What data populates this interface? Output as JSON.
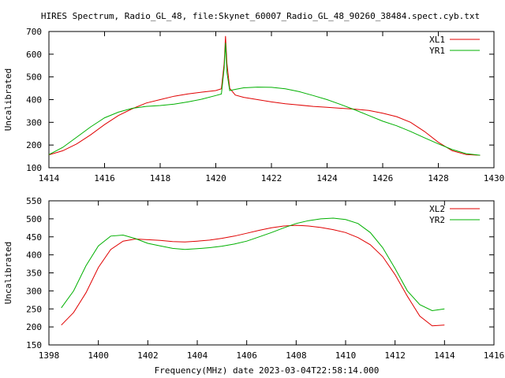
{
  "figure": {
    "title": "HIRES Spectrum, Radio_GL_48, file:Skynet_60007_Radio_GL_48_90260_38484.spect.cyb.txt",
    "xlabel": "Frequency(MHz) date 2023-03-04T22:58:14.000"
  },
  "chart_data": [
    {
      "type": "line",
      "title": "HIRES Spectrum, Radio_GL_48, file:Skynet_60007_Radio_GL_48_90260_38484.spect.cyb.txt",
      "xlabel": "",
      "ylabel": "Uncalibrated",
      "xlim": [
        1414,
        1430
      ],
      "ylim": [
        100,
        700
      ],
      "xticks": [
        1414,
        1416,
        1418,
        1420,
        1422,
        1424,
        1426,
        1428,
        1430
      ],
      "yticks": [
        100,
        200,
        300,
        400,
        500,
        600,
        700
      ],
      "legend_position": "top-right",
      "grid": false,
      "series": [
        {
          "name": "XL1",
          "color": "#e00000",
          "x": [
            1414.0,
            1414.5,
            1415.0,
            1415.5,
            1416.0,
            1416.5,
            1417.0,
            1417.5,
            1418.0,
            1418.5,
            1419.0,
            1419.5,
            1420.0,
            1420.2,
            1420.3,
            1420.35,
            1420.4,
            1420.5,
            1420.7,
            1421.0,
            1421.5,
            1422.0,
            1422.5,
            1423.0,
            1423.5,
            1424.0,
            1424.5,
            1425.0,
            1425.5,
            1426.0,
            1426.5,
            1427.0,
            1427.5,
            1428.0,
            1428.5,
            1429.0,
            1429.5
          ],
          "y": [
            157,
            175,
            205,
            245,
            290,
            330,
            360,
            385,
            400,
            415,
            425,
            433,
            440,
            448,
            560,
            680,
            560,
            450,
            420,
            410,
            400,
            390,
            382,
            376,
            370,
            366,
            362,
            358,
            352,
            340,
            325,
            300,
            260,
            212,
            175,
            158,
            155
          ]
        },
        {
          "name": "YR1",
          "color": "#00b000",
          "x": [
            1414.0,
            1414.5,
            1415.0,
            1415.5,
            1416.0,
            1416.5,
            1417.0,
            1417.5,
            1418.0,
            1418.5,
            1419.0,
            1419.5,
            1420.0,
            1420.2,
            1420.3,
            1420.35,
            1420.4,
            1420.5,
            1420.7,
            1421.0,
            1421.5,
            1422.0,
            1422.5,
            1423.0,
            1423.5,
            1424.0,
            1424.5,
            1425.0,
            1425.5,
            1426.0,
            1426.5,
            1427.0,
            1427.5,
            1428.0,
            1428.5,
            1429.0,
            1429.5
          ],
          "y": [
            158,
            190,
            235,
            280,
            320,
            345,
            362,
            370,
            374,
            380,
            390,
            402,
            418,
            425,
            540,
            650,
            520,
            440,
            445,
            452,
            455,
            454,
            448,
            435,
            418,
            400,
            378,
            355,
            330,
            305,
            285,
            260,
            232,
            205,
            180,
            162,
            155
          ]
        }
      ]
    },
    {
      "type": "line",
      "xlabel": "Frequency(MHz) date 2023-03-04T22:58:14.000",
      "ylabel": "Uncalibrated",
      "xlim": [
        1398,
        1416
      ],
      "ylim": [
        150,
        550
      ],
      "xticks": [
        1398,
        1400,
        1402,
        1404,
        1406,
        1408,
        1410,
        1412,
        1414,
        1416
      ],
      "yticks": [
        150,
        200,
        250,
        300,
        350,
        400,
        450,
        500,
        550
      ],
      "legend_position": "top-right",
      "grid": false,
      "series": [
        {
          "name": "XL2",
          "color": "#e00000",
          "x": [
            1398.5,
            1399.0,
            1399.5,
            1400.0,
            1400.5,
            1401.0,
            1401.5,
            1402.0,
            1402.5,
            1403.0,
            1403.5,
            1404.0,
            1404.5,
            1405.0,
            1405.5,
            1406.0,
            1406.5,
            1407.0,
            1407.5,
            1408.0,
            1408.5,
            1409.0,
            1409.5,
            1410.0,
            1410.5,
            1411.0,
            1411.5,
            1412.0,
            1412.5,
            1413.0,
            1413.5,
            1414.0
          ],
          "y": [
            205,
            240,
            295,
            365,
            415,
            438,
            444,
            442,
            440,
            437,
            436,
            438,
            441,
            446,
            452,
            460,
            468,
            475,
            480,
            482,
            480,
            476,
            470,
            462,
            448,
            428,
            395,
            345,
            285,
            230,
            203,
            205
          ]
        },
        {
          "name": "YR2",
          "color": "#00b000",
          "x": [
            1398.5,
            1399.0,
            1399.5,
            1400.0,
            1400.5,
            1401.0,
            1401.5,
            1402.0,
            1402.5,
            1403.0,
            1403.5,
            1404.0,
            1404.5,
            1405.0,
            1405.5,
            1406.0,
            1406.5,
            1407.0,
            1407.5,
            1408.0,
            1408.5,
            1409.0,
            1409.5,
            1410.0,
            1410.5,
            1411.0,
            1411.5,
            1412.0,
            1412.5,
            1413.0,
            1413.5,
            1414.0
          ],
          "y": [
            253,
            300,
            370,
            425,
            452,
            455,
            445,
            432,
            425,
            418,
            415,
            417,
            420,
            424,
            430,
            438,
            450,
            462,
            475,
            487,
            495,
            500,
            502,
            498,
            487,
            462,
            420,
            362,
            300,
            262,
            245,
            250
          ]
        }
      ]
    }
  ]
}
